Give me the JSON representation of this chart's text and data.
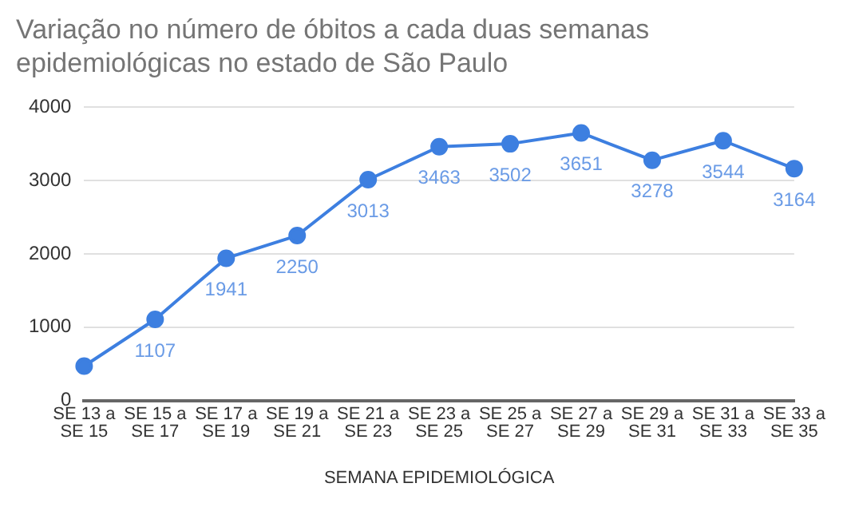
{
  "chart_data": {
    "type": "line",
    "title": "Variação no número de óbitos a cada duas semanas epidemiológicas no estado de São Paulo",
    "xlabel": "SEMANA EPIDEMIOLÓGICA",
    "categories": [
      "SE 13 a SE 15",
      "SE 15 a SE 17",
      "SE 17 a SE 19",
      "SE 19 a SE 21",
      "SE 21 a SE 23",
      "SE 23 a SE 25",
      "SE 25 a SE 27",
      "SE 27 a SE 29",
      "SE 29 a SE 31",
      "SE 31 a SE 33",
      "SE 33 a SE 35"
    ],
    "series": [
      {
        "color": "#3d7fe0",
        "values": [
          470,
          1107,
          1941,
          2250,
          3013,
          3463,
          3502,
          3651,
          3278,
          3544,
          3164
        ],
        "value_labels": [
          null,
          "1107",
          "1941",
          "2250",
          "3013",
          "3463",
          "3502",
          "3651",
          "3278",
          "3544",
          "3164"
        ]
      }
    ],
    "ylim": [
      0,
      4000
    ],
    "yticks": [
      0,
      1000,
      2000,
      3000,
      4000
    ],
    "grid": "y",
    "marker": "circle",
    "line_style": "solid",
    "legend": false
  }
}
